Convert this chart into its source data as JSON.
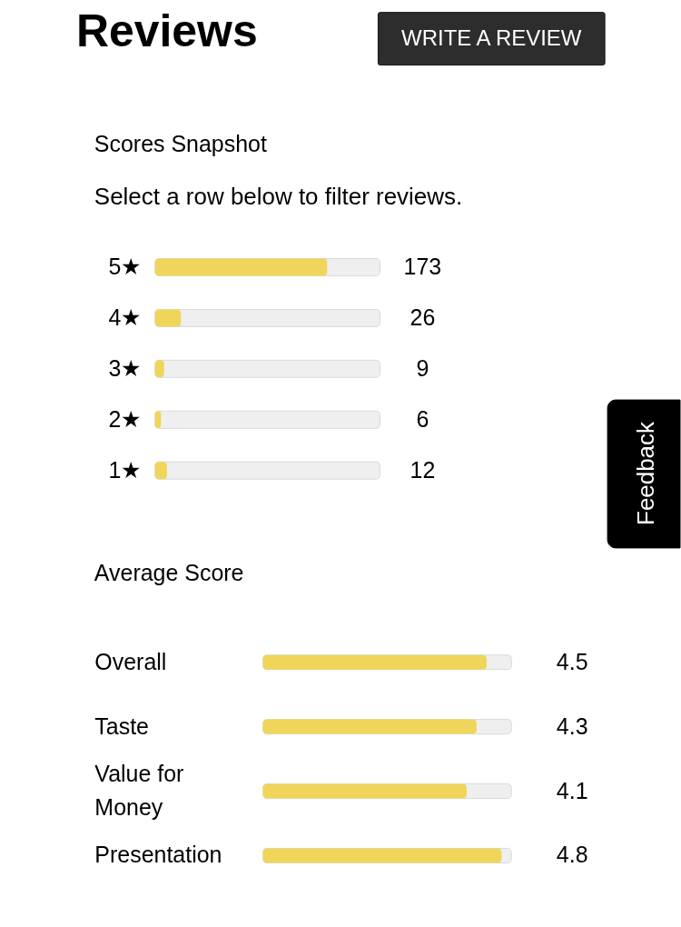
{
  "chart_data": [
    {
      "type": "bar",
      "orientation": "horizontal",
      "title": "Reviews",
      "subtitle": "Scores Snapshot",
      "annotations": [
        "WRITE A REVIEW",
        "Select a row below to filter reviews.",
        "Feedback"
      ],
      "categories": [
        "5★",
        "4★",
        "3★",
        "2★",
        "1★"
      ],
      "values": [
        173,
        26,
        9,
        6,
        12
      ],
      "color": "#f0d55b",
      "xlim": [
        0,
        226
      ],
      "data_labels": true,
      "tick_labels": "y"
    },
    {
      "type": "bar",
      "orientation": "horizontal",
      "title": "Average Score",
      "categories": [
        "Overall",
        "Taste",
        "Value for Money",
        "Presentation"
      ],
      "values": [
        4.5,
        4.3,
        4.1,
        4.8
      ],
      "color": "#f0d55b",
      "xlim": [
        0,
        5
      ],
      "data_labels": true,
      "tick_labels": "y"
    }
  ]
}
